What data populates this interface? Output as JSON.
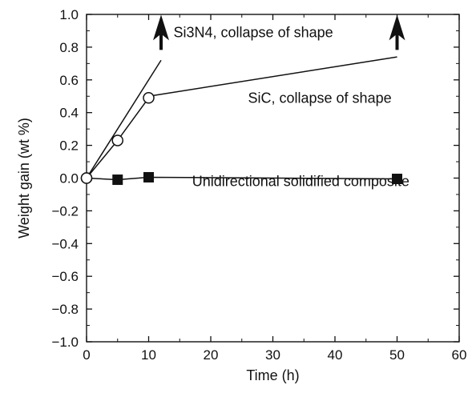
{
  "chart_data": {
    "type": "line",
    "title": "",
    "xlabel": "Time (h)",
    "ylabel": "Weight gain (wt %)",
    "xlim": [
      0,
      60
    ],
    "ylim": [
      -1.0,
      1.0
    ],
    "xticks": [
      0,
      10,
      20,
      30,
      40,
      50,
      60
    ],
    "yticks": [
      1.0,
      0.8,
      0.6,
      0.4,
      0.2,
      0.0,
      -0.2,
      -0.4,
      -0.6,
      -0.8,
      -1.0
    ],
    "xtick_labels": [
      "0",
      "10",
      "20",
      "30",
      "40",
      "50",
      "60"
    ],
    "ytick_labels": [
      "1.0",
      "0.8",
      "0.6",
      "0.4",
      "0.2",
      "0.0",
      "−0.2",
      "−0.4",
      "−0.6",
      "−0.8",
      "−1.0"
    ],
    "grid": false,
    "series": [
      {
        "marker": "line-with-arrow",
        "x": [
          0,
          12
        ],
        "y": [
          0.0,
          0.72
        ],
        "arrow_at": [
          12,
          0.92
        ]
      },
      {
        "marker": "open-circle",
        "x": [
          0,
          5,
          10
        ],
        "y": [
          0.0,
          0.23,
          0.49
        ],
        "extension": {
          "x": [
            10,
            50
          ],
          "y": [
            0.5,
            0.74
          ]
        },
        "arrow_at": [
          50,
          0.92
        ]
      },
      {
        "marker": "filled-square",
        "x": [
          0,
          5,
          10,
          50
        ],
        "y": [
          0.0,
          -0.01,
          0.005,
          -0.005
        ]
      }
    ],
    "annotations": [
      {
        "text": "Si3N4, collapse of shape",
        "x": 14,
        "y": 0.86
      },
      {
        "text": "SiC, collapse of shape",
        "x": 26,
        "y": 0.46
      },
      {
        "text": "Unidirectional solidified composite",
        "x": 17,
        "y": -0.05
      }
    ],
    "colors": {
      "ink": "#111111",
      "background": "#ffffff"
    }
  }
}
